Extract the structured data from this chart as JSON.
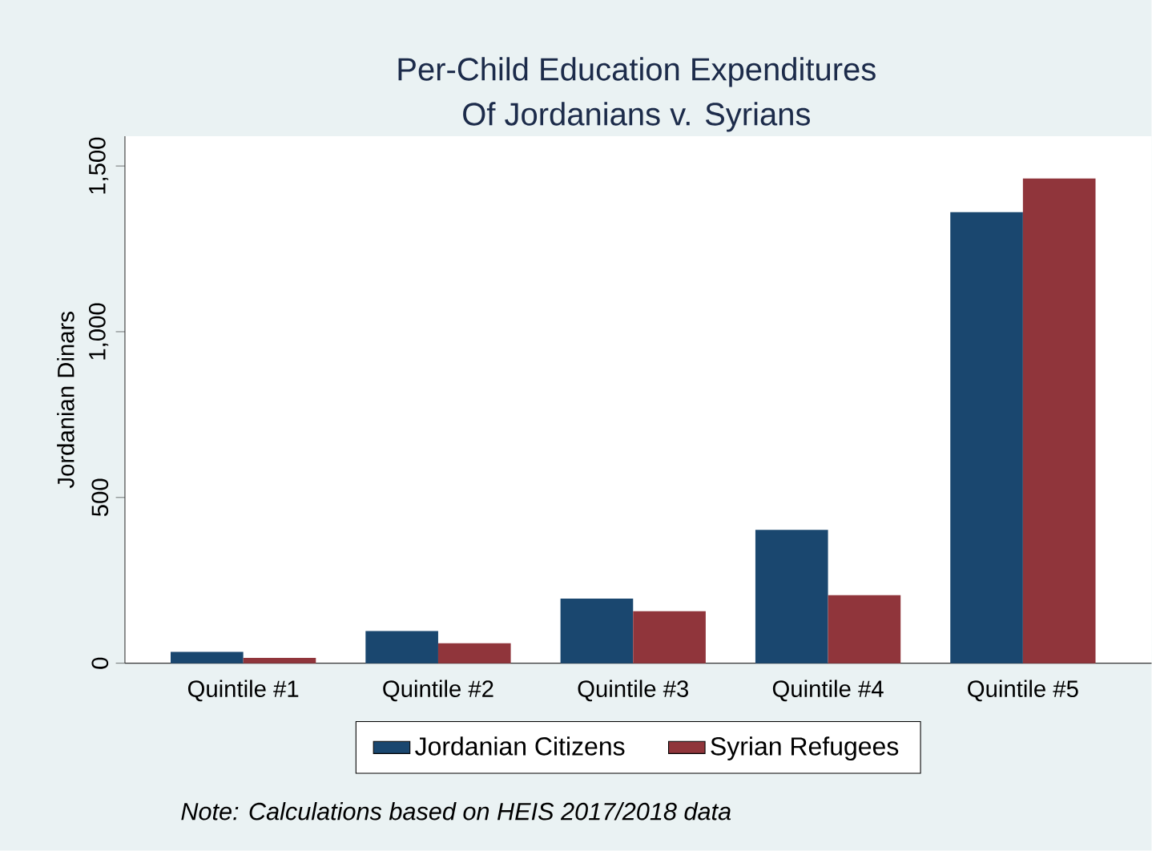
{
  "chart_data": {
    "type": "bar",
    "title": "Per-Child Education Expenditures",
    "subtitle": "Of Jordanians v. Syrians",
    "ylabel": "Jordanian Dinars",
    "categories": [
      "Quintile #1",
      "Quintile #2",
      "Quintile #3",
      "Quintile #4",
      "Quintile #5"
    ],
    "series": [
      {
        "name": "Jordanian Citizens",
        "color": "#1a476f",
        "values": [
          34,
          97,
          195,
          402,
          1361
        ]
      },
      {
        "name": "Syrian Refugees",
        "color": "#90353b",
        "values": [
          16,
          60,
          157,
          205,
          1462
        ]
      }
    ],
    "ylim": [
      0,
      1590
    ],
    "yticks": [
      0,
      500,
      {
        "value": 1000,
        "label": "1,000"
      },
      {
        "value": 1500,
        "label": "1,500"
      }
    ],
    "grid": false,
    "legend": "bottom",
    "annotations": [
      "Note: Calculations based on HEIS 2017/2018 data"
    ]
  }
}
